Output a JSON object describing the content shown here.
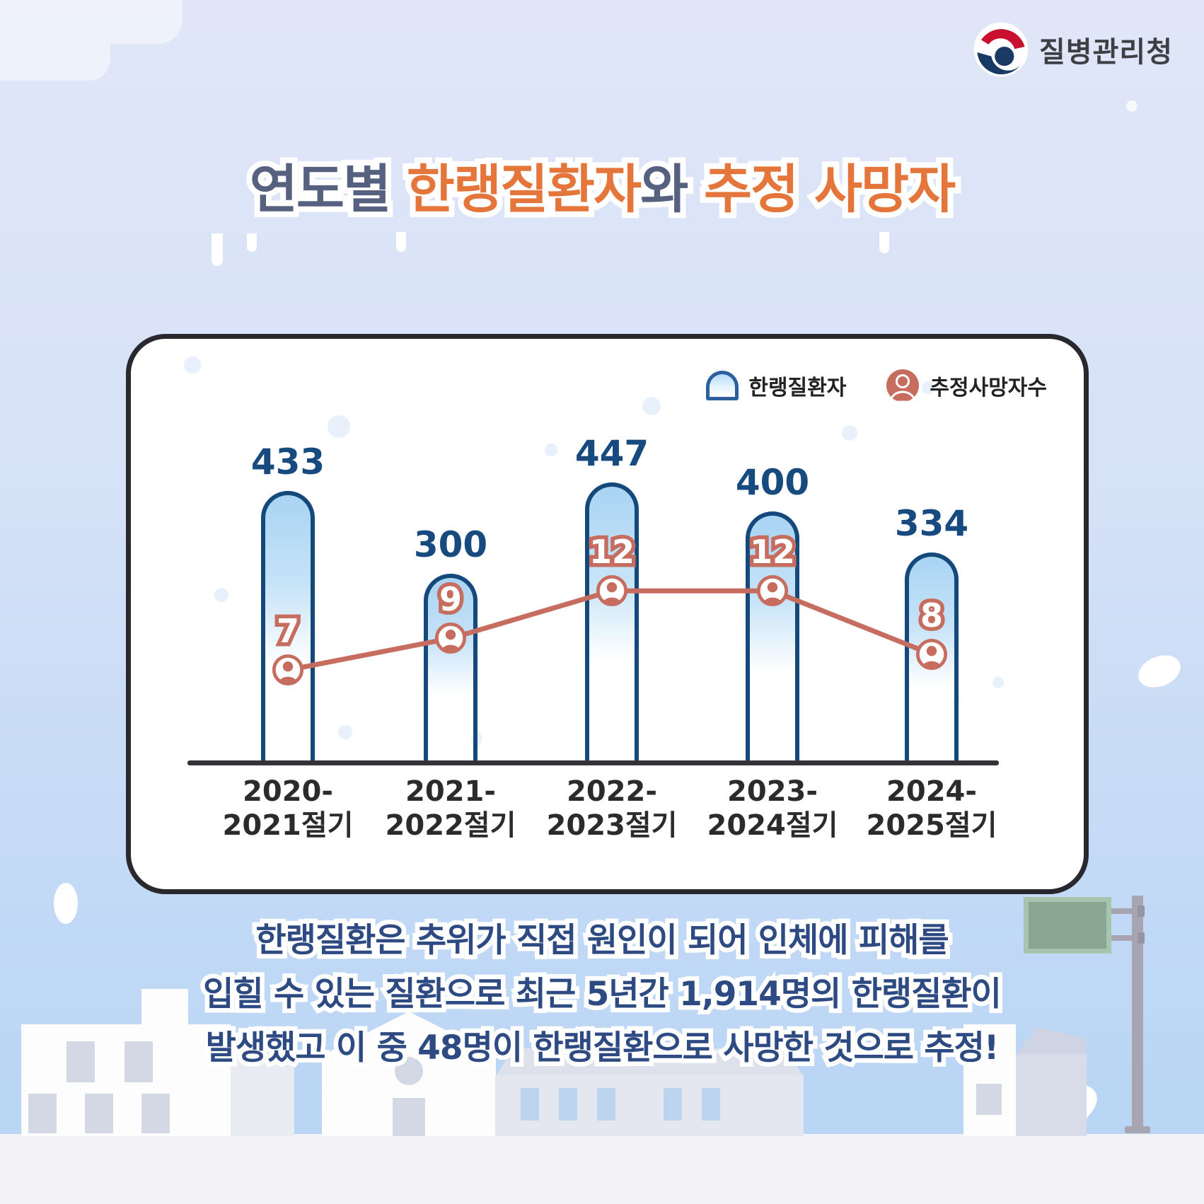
{
  "logo": {
    "agency_name": "질병관리청"
  },
  "title": {
    "segments": [
      {
        "text": "연도별 ",
        "color_role": "blue"
      },
      {
        "text": "한랭질환자",
        "color_role": "orange"
      },
      {
        "text": "와 ",
        "color_role": "blue"
      },
      {
        "text": "추정 사망자",
        "color_role": "orange"
      }
    ]
  },
  "legend": [
    {
      "label": "한랭질환자",
      "swatch": "patients-bar-icon"
    },
    {
      "label": "추정사망자수",
      "swatch": "deaths-person-icon"
    }
  ],
  "chart_data": {
    "type": "bar+line",
    "categories": [
      {
        "line1": "2020-",
        "line2": "2021절기"
      },
      {
        "line1": "2021-",
        "line2": "2022절기"
      },
      {
        "line1": "2022-",
        "line2": "2023절기"
      },
      {
        "line1": "2023-",
        "line2": "2024절기"
      },
      {
        "line1": "2024-",
        "line2": "2025절기"
      }
    ],
    "series": [
      {
        "name": "한랭질환자",
        "type": "bar",
        "values": [
          433,
          300,
          447,
          400,
          334
        ]
      },
      {
        "name": "추정사망자수",
        "type": "line",
        "values": [
          7,
          9,
          12,
          12,
          8
        ]
      }
    ],
    "legend_position": "top-right",
    "grid": false,
    "ylim_bar": [
      0,
      500
    ],
    "ylim_line": [
      0,
      14
    ]
  },
  "footer": {
    "lines": [
      "한랭질환은 추위가 직접 원인이 되어 인체에 피해를",
      "입힐 수 있는 질환으로 최근 5년간 1,914명의 한랭질환이",
      "발생했고 이 중 48명이 한랭질환으로 사망한 것으로 추정!"
    ]
  },
  "colors": {
    "title_blue": "#55617f",
    "title_orange": "#e4763b",
    "bar_border_navy": "#15497c",
    "bar_fill_top": "#a9d4f3",
    "value_navy": "#174b80",
    "line_salmon": "#c76d60",
    "card_border": "#28282e",
    "footer_navy": "#2d4b82",
    "sign_green": "#88a691",
    "bg_top": "#e0e6f7",
    "bg_bottom": "#b6d4f4"
  }
}
